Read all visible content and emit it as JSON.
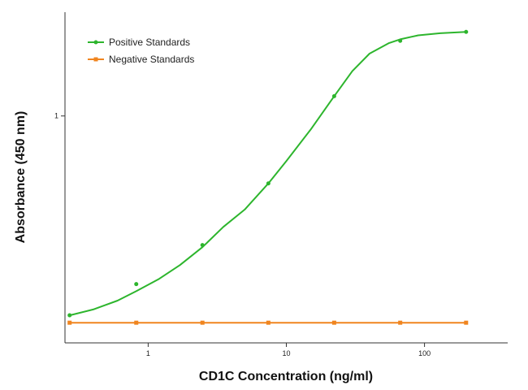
{
  "chart_data": {
    "type": "line",
    "xlabel": "CD1C Concentration (ng/ml)",
    "ylabel": "Absorbance (450 nm)",
    "xscale": "log",
    "yscale": "log",
    "xlim": [
      0.25,
      400
    ],
    "ylim": [
      0.054,
      3.8
    ],
    "xticks": [
      1,
      10,
      100
    ],
    "xtick_labels": [
      "1",
      "10",
      "100"
    ],
    "yticks": [
      1
    ],
    "ytick_labels": [
      "1"
    ],
    "legend_position": "top-left",
    "grid": false,
    "series": [
      {
        "name": "Positive Standards",
        "color": "#2db52d",
        "x": [
          0.27,
          0.82,
          2.47,
          7.41,
          22.2,
          66.7,
          200
        ],
        "y": [
          0.077,
          0.115,
          0.19,
          0.42,
          1.29,
          2.63,
          2.95
        ],
        "curve_x": [
          0.27,
          0.4,
          0.6,
          0.82,
          1.2,
          1.7,
          2.47,
          3.5,
          5,
          7.41,
          10,
          15,
          22.2,
          30,
          40,
          55,
          66.7,
          90,
          130,
          200
        ],
        "curve_y": [
          0.077,
          0.083,
          0.093,
          0.105,
          0.123,
          0.147,
          0.185,
          0.24,
          0.3,
          0.42,
          0.56,
          0.84,
          1.29,
          1.78,
          2.23,
          2.55,
          2.68,
          2.82,
          2.9,
          2.95
        ]
      },
      {
        "name": "Negative Standards",
        "color": "#f0851f",
        "x": [
          0.27,
          0.82,
          2.47,
          7.41,
          22.2,
          66.7,
          200
        ],
        "y": [
          0.07,
          0.07,
          0.07,
          0.07,
          0.07,
          0.07,
          0.07
        ]
      }
    ]
  }
}
